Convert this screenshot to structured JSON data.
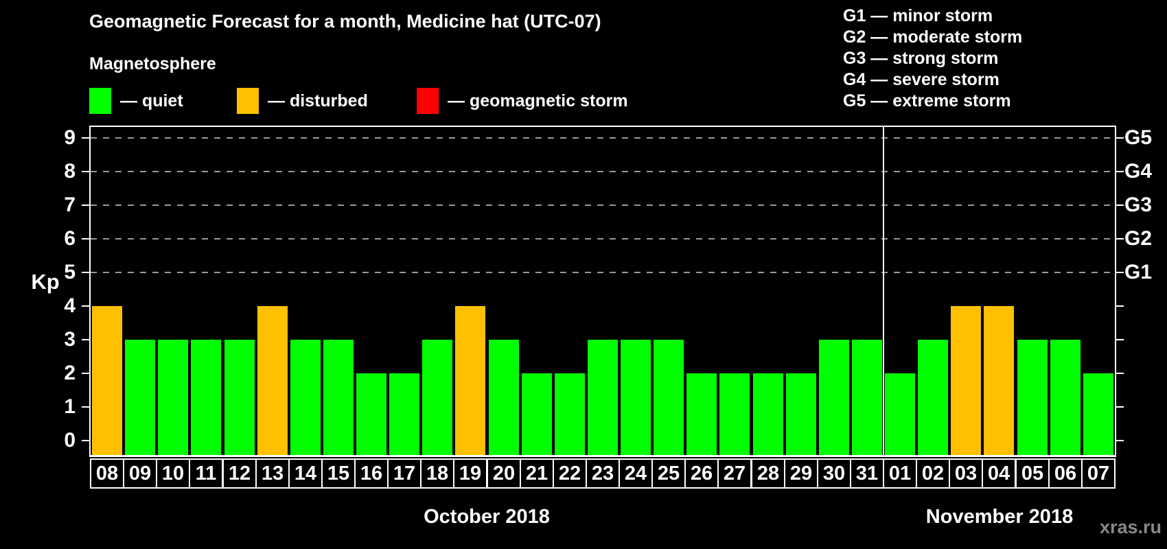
{
  "title": "Geomagnetic Forecast for a month, Medicine hat (UTC-07)",
  "subtitle": "Magnetosphere",
  "legend": {
    "items": [
      {
        "name": "quiet",
        "label": "— quiet",
        "color": "#00ff00"
      },
      {
        "name": "disturbed",
        "label": "— disturbed",
        "color": "#ffc000"
      },
      {
        "name": "storm",
        "label": "— geomagnetic storm",
        "color": "#ff0000"
      }
    ]
  },
  "storm_scale": {
    "lines": [
      "G1 — minor storm",
      "G2 — moderate storm",
      "G3 — strong storm",
      "G4 — severe storm",
      "G5 — extreme storm"
    ]
  },
  "watermark": "xras.ru",
  "chart_data": {
    "type": "bar",
    "title": "Geomagnetic Forecast for a month, Medicine hat (UTC-07)",
    "ylabel": "Kp",
    "ylim": [
      0,
      9.4
    ],
    "yticks": [
      0,
      1,
      2,
      3,
      4,
      5,
      6,
      7,
      8,
      9
    ],
    "gridlines_at_kp": [
      5,
      6,
      7,
      8,
      9
    ],
    "right_axis": [
      {
        "kp": 5,
        "label": "G1"
      },
      {
        "kp": 6,
        "label": "G2"
      },
      {
        "kp": 7,
        "label": "G3"
      },
      {
        "kp": 8,
        "label": "G4"
      },
      {
        "kp": 9,
        "label": "G5"
      }
    ],
    "colors": {
      "quiet": "#00ff00",
      "disturbed": "#ffc000",
      "storm": "#ff0000"
    },
    "legend_position": "top-left",
    "grid": "dashed horizontal at G-levels only",
    "months": [
      {
        "label": "October 2018",
        "days": [
          {
            "day": "08",
            "kp": 4,
            "state": "disturbed"
          },
          {
            "day": "09",
            "kp": 3,
            "state": "quiet"
          },
          {
            "day": "10",
            "kp": 3,
            "state": "quiet"
          },
          {
            "day": "11",
            "kp": 3,
            "state": "quiet"
          },
          {
            "day": "12",
            "kp": 3,
            "state": "quiet"
          },
          {
            "day": "13",
            "kp": 4,
            "state": "disturbed"
          },
          {
            "day": "14",
            "kp": 3,
            "state": "quiet"
          },
          {
            "day": "15",
            "kp": 3,
            "state": "quiet"
          },
          {
            "day": "16",
            "kp": 2,
            "state": "quiet"
          },
          {
            "day": "17",
            "kp": 2,
            "state": "quiet"
          },
          {
            "day": "18",
            "kp": 3,
            "state": "quiet"
          },
          {
            "day": "19",
            "kp": 4,
            "state": "disturbed"
          },
          {
            "day": "20",
            "kp": 3,
            "state": "quiet"
          },
          {
            "day": "21",
            "kp": 2,
            "state": "quiet"
          },
          {
            "day": "22",
            "kp": 2,
            "state": "quiet"
          },
          {
            "day": "23",
            "kp": 3,
            "state": "quiet"
          },
          {
            "day": "24",
            "kp": 3,
            "state": "quiet"
          },
          {
            "day": "25",
            "kp": 3,
            "state": "quiet"
          },
          {
            "day": "26",
            "kp": 2,
            "state": "quiet"
          },
          {
            "day": "27",
            "kp": 2,
            "state": "quiet"
          },
          {
            "day": "28",
            "kp": 2,
            "state": "quiet"
          },
          {
            "day": "29",
            "kp": 2,
            "state": "quiet"
          },
          {
            "day": "30",
            "kp": 3,
            "state": "quiet"
          },
          {
            "day": "31",
            "kp": 3,
            "state": "quiet"
          }
        ]
      },
      {
        "label": "November 2018",
        "days": [
          {
            "day": "01",
            "kp": 2,
            "state": "quiet"
          },
          {
            "day": "02",
            "kp": 3,
            "state": "quiet"
          },
          {
            "day": "03",
            "kp": 4,
            "state": "disturbed"
          },
          {
            "day": "04",
            "kp": 4,
            "state": "disturbed"
          },
          {
            "day": "05",
            "kp": 3,
            "state": "quiet"
          },
          {
            "day": "06",
            "kp": 3,
            "state": "quiet"
          },
          {
            "day": "07",
            "kp": 2,
            "state": "quiet"
          }
        ]
      }
    ]
  }
}
